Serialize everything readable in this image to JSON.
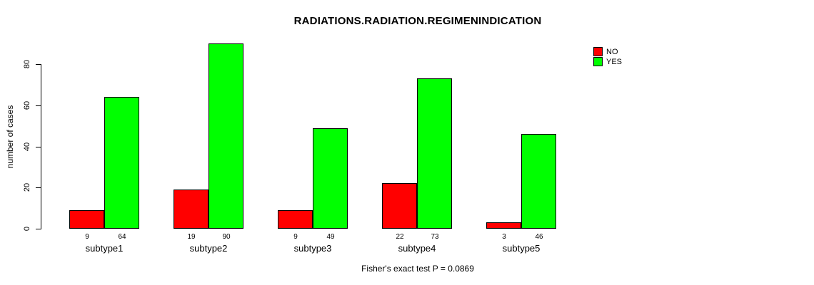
{
  "chart_data": {
    "type": "bar",
    "title": "RADIATIONS.RADIATION.REGIMENINDICATION",
    "ylabel": "number of cases",
    "footnote": "Fisher's exact test P = 0.0869",
    "categories": [
      "subtype1",
      "subtype2",
      "subtype3",
      "subtype4",
      "subtype5"
    ],
    "series": [
      {
        "name": "NO",
        "color": "#ff0000",
        "values": [
          9,
          19,
          9,
          22,
          3
        ]
      },
      {
        "name": "YES",
        "color": "#00ff00",
        "values": [
          64,
          90,
          49,
          73,
          46
        ]
      }
    ],
    "bar_value_labels": true,
    "yticks": [
      0,
      20,
      40,
      60,
      80
    ],
    "ylim": [
      0,
      92
    ],
    "grid": false,
    "legend_position": "top-right",
    "axis_color": "#000000",
    "background_color": "#ffffff"
  }
}
